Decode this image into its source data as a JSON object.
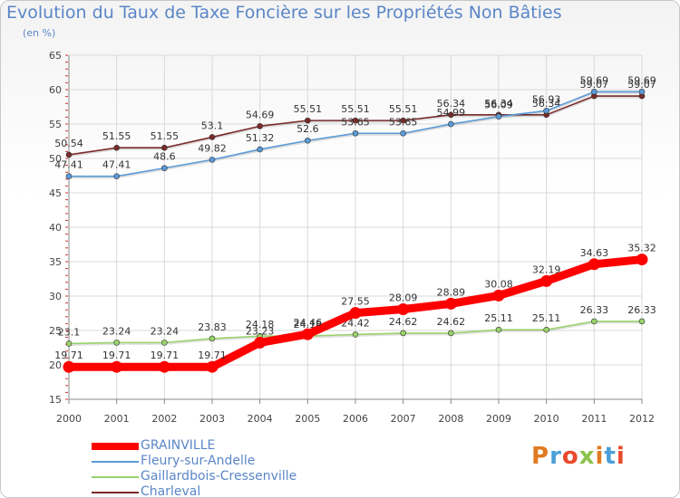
{
  "header": {
    "title": "Evolution du Taux de Taxe Foncière sur les Propriétés Non Bâties",
    "subtitle": "(en %)"
  },
  "logo": {
    "text": "Proxiti",
    "colors": [
      "#e07a21",
      "#4a9fd8",
      "#e84a2c",
      "#8bc34a",
      "#e07a21",
      "#4a9fd8",
      "#e84a2c"
    ]
  },
  "chart_data": {
    "type": "line",
    "categories": [
      "2000",
      "2001",
      "2002",
      "2003",
      "2004",
      "2005",
      "2006",
      "2007",
      "2008",
      "2009",
      "2010",
      "2011",
      "2012"
    ],
    "ylim": [
      15,
      65
    ],
    "yticks": [
      15,
      20,
      25,
      30,
      35,
      40,
      45,
      50,
      55,
      60,
      65
    ],
    "grid": true,
    "legend_position": "bottom-left",
    "series": [
      {
        "name": "Charleval",
        "color": "#7a2a2a",
        "values": [
          50.54,
          51.55,
          51.55,
          53.1,
          54.69,
          55.51,
          55.51,
          55.51,
          56.34,
          56.34,
          56.34,
          59.07,
          59.07
        ],
        "labels": [
          "50.54",
          "51.55",
          "51.55",
          "53.1",
          "54.69",
          "55.51",
          "55.51",
          "55.51",
          "56.34",
          "56.34",
          "56.34",
          "59.07",
          "59.07"
        ]
      },
      {
        "name": "Fleury-sur-Andelle",
        "color": "#5a9ad6",
        "values": [
          47.41,
          47.41,
          48.6,
          49.82,
          51.32,
          52.6,
          53.65,
          53.65,
          54.99,
          56.09,
          56.93,
          59.69,
          59.69
        ],
        "labels": [
          "47.41",
          "47.41",
          "48.6",
          "49.82",
          "51.32",
          "52.6",
          "53.65",
          "53.65",
          "54.99",
          "56.09",
          "56.93",
          "59.69",
          "59.69"
        ]
      },
      {
        "name": "Gaillardbois-Cressenville",
        "color": "#99d26b",
        "values": [
          23.1,
          23.24,
          23.24,
          23.83,
          24.18,
          24.18,
          24.42,
          24.62,
          24.62,
          25.11,
          25.11,
          26.33,
          26.33
        ],
        "labels": [
          "23.1",
          "23.24",
          "23.24",
          "23.83",
          "24.18",
          "24.18",
          "24.42",
          "24.62",
          "24.62",
          "25.11",
          "25.11",
          "26.33",
          "26.33"
        ]
      },
      {
        "name": "GRAINVILLE",
        "color": "#ff0000",
        "values": [
          19.71,
          19.71,
          19.71,
          19.71,
          23.23,
          24.46,
          27.55,
          28.09,
          28.89,
          30.08,
          32.19,
          34.63,
          35.32
        ],
        "labels": [
          "19.71",
          "19.71",
          "19.71",
          "19.71",
          "23.23",
          "24.46",
          "27.55",
          "28.09",
          "28.89",
          "30.08",
          "32.19",
          "34.63",
          "35.32"
        ]
      }
    ],
    "legend": [
      "GRAINVILLE",
      "Fleury-sur-Andelle",
      "Gaillardbois-Cressenville",
      "Charleval"
    ]
  }
}
